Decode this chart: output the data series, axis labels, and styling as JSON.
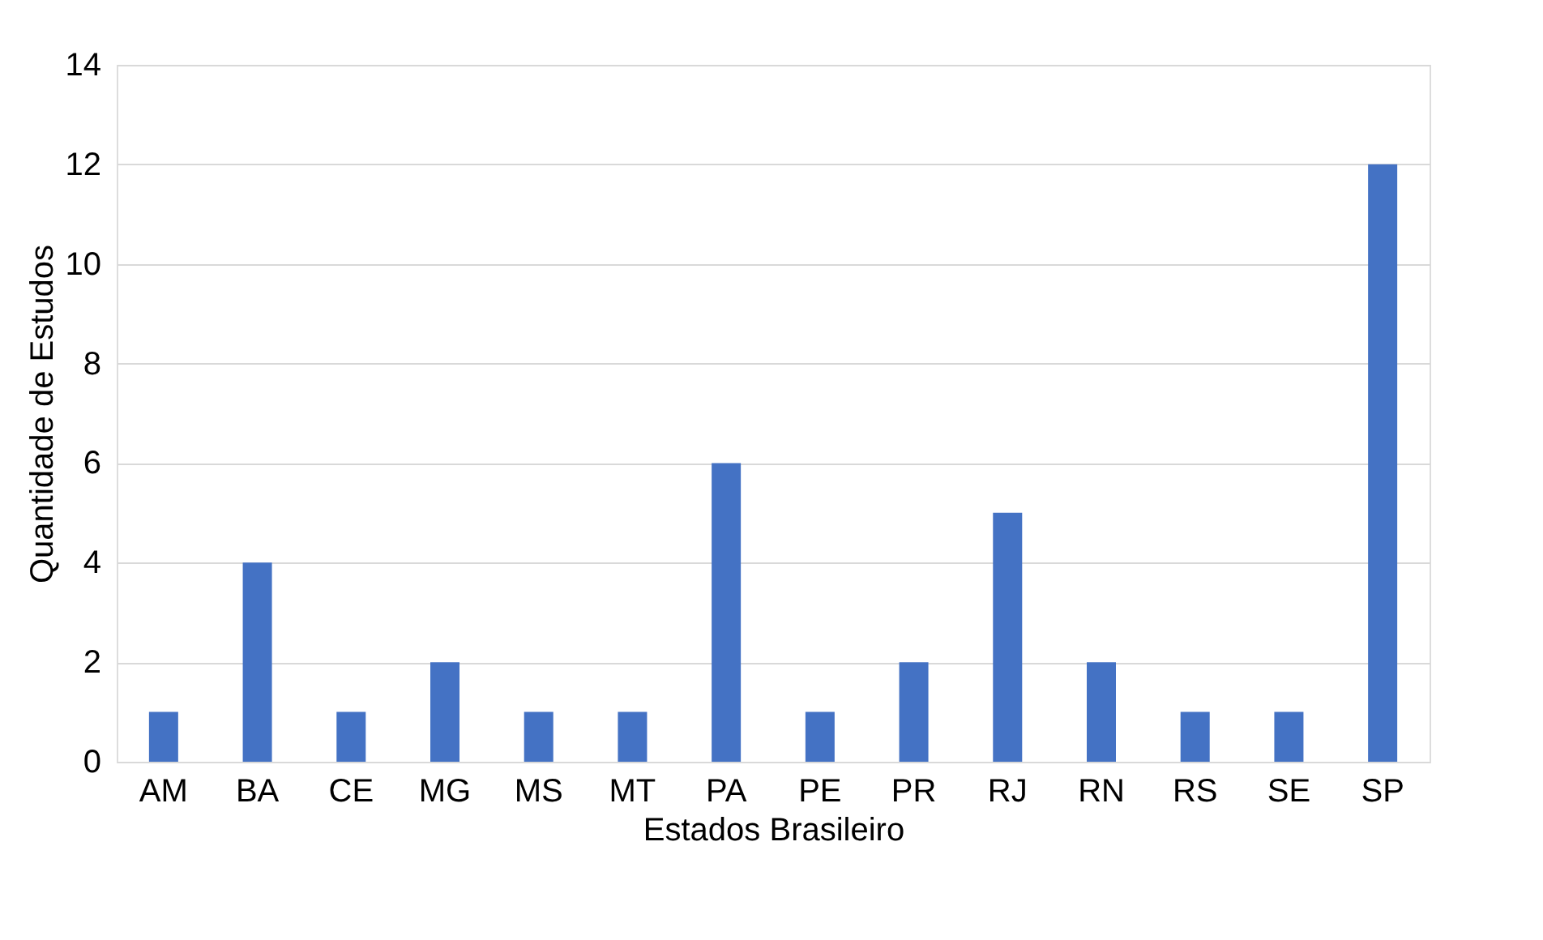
{
  "chart_data": {
    "type": "bar",
    "xlabel": "Estados Brasileiro",
    "ylabel": "Quantidade de Estudos",
    "categories": [
      "AM",
      "BA",
      "CE",
      "MG",
      "MS",
      "MT",
      "PA",
      "PE",
      "PR",
      "RJ",
      "RN",
      "RS",
      "SE",
      "SP"
    ],
    "values": [
      1,
      4,
      1,
      2,
      1,
      1,
      6,
      1,
      2,
      5,
      2,
      1,
      1,
      12
    ],
    "color": "#4472c4",
    "ylim": [
      0,
      14
    ],
    "yticks": [
      0,
      2,
      4,
      6,
      8,
      10,
      12,
      14
    ],
    "grid": "y"
  }
}
